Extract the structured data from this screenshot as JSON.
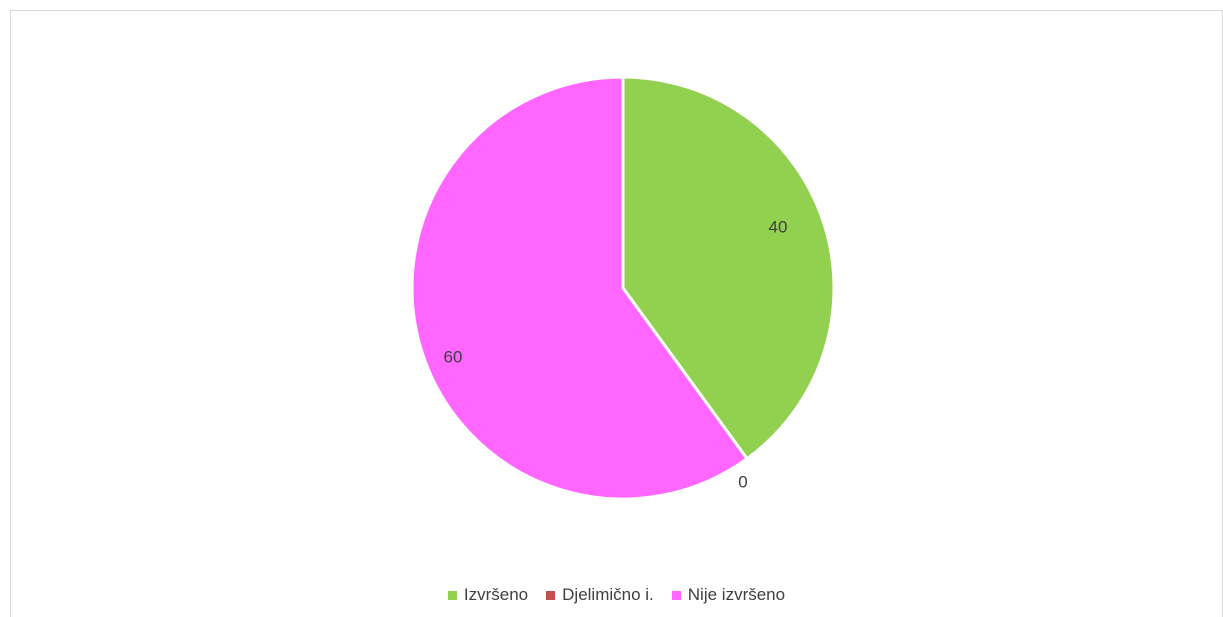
{
  "chart_data": {
    "type": "pie",
    "categories": [
      "Izvršeno",
      "Djelimično i.",
      "Nije izvršeno"
    ],
    "values": [
      40,
      0,
      60
    ],
    "data_labels": [
      "40",
      "0",
      "60"
    ],
    "colors": [
      "#92d050",
      "#c0504d",
      "#ff66ff"
    ],
    "legend_position": "bottom",
    "start_angle": "12 o'clock, clockwise"
  }
}
